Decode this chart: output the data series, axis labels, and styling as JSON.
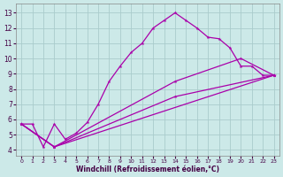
{
  "xlabel": "Windchill (Refroidissement éolien,°C)",
  "background_color": "#cce9e8",
  "line_color": "#aa00aa",
  "grid_color": "#aacccc",
  "xlim": [
    -0.5,
    23.5
  ],
  "ylim": [
    3.6,
    13.6
  ],
  "xticks": [
    0,
    1,
    2,
    3,
    4,
    5,
    6,
    7,
    8,
    9,
    10,
    11,
    12,
    13,
    14,
    15,
    16,
    17,
    18,
    19,
    20,
    21,
    22,
    23
  ],
  "yticks": [
    4,
    5,
    6,
    7,
    8,
    9,
    10,
    11,
    12,
    13
  ],
  "lines": [
    {
      "x": [
        0,
        1,
        2,
        3,
        4,
        5,
        6,
        7,
        8,
        9,
        10,
        11,
        12,
        13,
        14,
        15,
        16,
        17,
        18,
        19,
        20,
        21,
        22,
        23
      ],
      "y": [
        5.7,
        5.7,
        4.2,
        5.7,
        4.7,
        5.1,
        5.8,
        7.0,
        8.5,
        9.5,
        10.4,
        11.0,
        12.0,
        12.5,
        13.0,
        12.5,
        12.0,
        11.4,
        11.3,
        10.7,
        9.5,
        9.5,
        8.9,
        8.9
      ]
    },
    {
      "x": [
        0,
        3,
        14,
        20,
        23
      ],
      "y": [
        5.7,
        4.2,
        8.5,
        10.0,
        8.9
      ]
    },
    {
      "x": [
        0,
        3,
        14,
        23
      ],
      "y": [
        5.7,
        4.2,
        7.5,
        8.9
      ]
    },
    {
      "x": [
        0,
        3,
        23
      ],
      "y": [
        5.7,
        4.2,
        8.9
      ]
    }
  ]
}
